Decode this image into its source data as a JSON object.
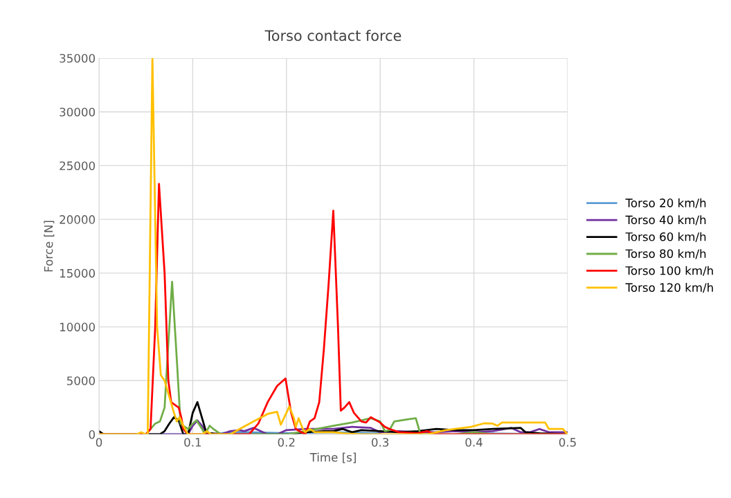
{
  "chart_data": {
    "type": "line",
    "title": "Torso contact force",
    "xlabel": "Time [s]",
    "ylabel": "Force [N]",
    "xlim": [
      0,
      0.5
    ],
    "xticks": [
      0,
      0.1,
      0.2,
      0.3,
      0.4,
      0.5
    ],
    "ylim": [
      0,
      35000
    ],
    "yticks": [
      0,
      5000,
      10000,
      15000,
      20000,
      25000,
      30000,
      35000
    ],
    "grid": true,
    "legend": "right",
    "marker": "none",
    "line_style": "solid",
    "series": [
      {
        "name": "Torso 20 km/h",
        "color": "#5b9bd5",
        "x": [
          0,
          0.12,
          0.14,
          0.16,
          0.2,
          0.25,
          0.3,
          0.35,
          0.4,
          0.5
        ],
        "values": [
          0,
          0,
          200,
          200,
          100,
          200,
          100,
          null,
          100,
          0
        ]
      },
      {
        "name": "Torso 40 km/h",
        "color": "#7030a0",
        "x": [
          0,
          0.095,
          0.1,
          0.105,
          0.11,
          0.115,
          0.13,
          0.14,
          0.15,
          0.155,
          0.165,
          0.17,
          0.18,
          0.19,
          0.2,
          0.22,
          0.25,
          0.27,
          0.29,
          0.3,
          0.32,
          0.34,
          0.36,
          0.38,
          0.4,
          0.42,
          0.44,
          0.45,
          0.46,
          0.47,
          0.48,
          0.5
        ],
        "values": [
          0,
          0,
          800,
          1300,
          800,
          0,
          0,
          300,
          400,
          300,
          600,
          400,
          0,
          0,
          400,
          500,
          500,
          700,
          600,
          200,
          300,
          200,
          200,
          300,
          200,
          300,
          600,
          200,
          200,
          500,
          200,
          200
        ]
      },
      {
        "name": "Torso 60 km/h",
        "color": "#000000",
        "x": [
          0,
          0.005,
          0.065,
          0.07,
          0.075,
          0.08,
          0.085,
          0.09,
          0.095,
          0.1,
          0.105,
          0.11,
          0.115,
          0.12,
          0.13,
          0.2,
          0.22,
          0.24,
          0.25,
          0.26,
          0.27,
          0.28,
          0.3,
          0.32,
          0.34,
          0.36,
          0.38,
          0.4,
          0.42,
          0.45,
          0.455,
          0.47,
          0.5
        ],
        "values": [
          300,
          0,
          0,
          300,
          1000,
          1600,
          1300,
          0,
          0,
          2000,
          3000,
          1500,
          0,
          100,
          0,
          0,
          200,
          300,
          300,
          500,
          200,
          400,
          300,
          200,
          300,
          500,
          400,
          400,
          500,
          600,
          200,
          100,
          0
        ]
      },
      {
        "name": "Torso 80 km/h",
        "color": "#70ad47",
        "x": [
          0,
          0.05,
          0.06,
          0.065,
          0.07,
          0.073,
          0.078,
          0.083,
          0.087,
          0.09,
          0.095,
          0.1,
          0.104,
          0.11,
          0.113,
          0.118,
          0.122,
          0.13,
          0.2,
          0.22,
          0.25,
          0.27,
          0.29,
          0.3,
          0.305,
          0.31,
          0.315,
          0.33,
          0.338,
          0.343,
          0.38,
          0.4,
          0.41,
          0.42,
          0.5
        ],
        "values": [
          0,
          0,
          1000,
          1200,
          2500,
          7000,
          14200,
          7000,
          1000,
          800,
          500,
          1000,
          1300,
          500,
          0,
          800,
          500,
          0,
          0,
          300,
          800,
          1100,
          1500,
          1200,
          300,
          400,
          1200,
          1400,
          1500,
          0,
          0,
          200,
          100,
          0,
          0
        ]
      },
      {
        "name": "Torso 100 km/h",
        "color": "#ff0000",
        "x": [
          0,
          0.05,
          0.055,
          0.06,
          0.064,
          0.07,
          0.074,
          0.077,
          0.08,
          0.085,
          0.088,
          0.09,
          0.095,
          0.16,
          0.17,
          0.18,
          0.19,
          0.199,
          0.205,
          0.21,
          0.22,
          0.225,
          0.23,
          0.235,
          0.24,
          0.245,
          0.25,
          0.255,
          0.258,
          0.262,
          0.267,
          0.272,
          0.28,
          0.285,
          0.29,
          0.3,
          0.305,
          0.31,
          0.32,
          0.34,
          0.35,
          0.36,
          0.5
        ],
        "values": [
          0,
          0,
          500,
          10000,
          23300,
          15000,
          5000,
          3000,
          2800,
          2500,
          1500,
          500,
          0,
          0,
          1000,
          3000,
          4500,
          5200,
          2000,
          500,
          0,
          1200,
          1500,
          3000,
          8000,
          14000,
          20800,
          10000,
          2200,
          2500,
          3000,
          2000,
          1200,
          1100,
          1600,
          1100,
          700,
          500,
          200,
          100,
          300,
          0,
          0
        ]
      },
      {
        "name": "Torso 120 km/h",
        "color": "#ffc000",
        "x": [
          0,
          0.04,
          0.045,
          0.05,
          0.052,
          0.057,
          0.062,
          0.066,
          0.07,
          0.075,
          0.08,
          0.083,
          0.086,
          0.09,
          0.095,
          0.11,
          0.115,
          0.12,
          0.14,
          0.15,
          0.165,
          0.18,
          0.19,
          0.194,
          0.2,
          0.203,
          0.208,
          0.21,
          0.213,
          0.217,
          0.22,
          0.225,
          0.23,
          0.25,
          0.26,
          0.28,
          0.35,
          0.37,
          0.397,
          0.411,
          0.42,
          0.425,
          0.43,
          0.476,
          0.48,
          0.495,
          0.5
        ],
        "values": [
          0,
          0,
          200,
          0,
          0,
          35000,
          10000,
          5500,
          5000,
          3500,
          2000,
          1200,
          1600,
          800,
          0,
          0,
          300,
          0,
          0,
          500,
          1200,
          1900,
          2100,
          900,
          2000,
          2600,
          1500,
          700,
          1500,
          600,
          200,
          500,
          200,
          200,
          100,
          0,
          0,
          400,
          700,
          1030,
          1000,
          800,
          1100,
          1100,
          500,
          500,
          0
        ]
      }
    ]
  }
}
